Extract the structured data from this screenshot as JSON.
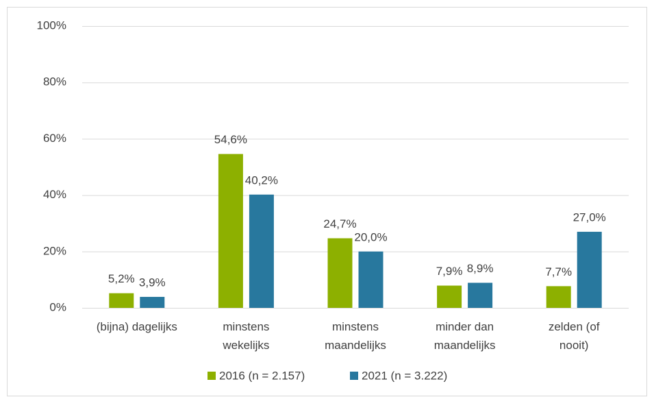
{
  "chart_data": {
    "type": "bar",
    "categories": [
      "(bijna) dagelijks",
      "minstens\nwekelijks",
      "minstens\nmaandelijks",
      "minder dan\nmaandelijks",
      "zelden (of\nnooit)"
    ],
    "series": [
      {
        "name": "2016 (n = 2.157)",
        "color": "#8db000",
        "values": [
          5.2,
          54.6,
          24.7,
          7.9,
          7.7
        ],
        "value_labels": [
          "5,2%",
          "54,6%",
          "24,7%",
          "7,9%",
          "7,7%"
        ]
      },
      {
        "name": "2021 (n = 3.222)",
        "color": "#28789e",
        "values": [
          3.9,
          40.2,
          20.0,
          8.9,
          27.0
        ],
        "value_labels": [
          "3,9%",
          "40,2%",
          "20,0%",
          "8,9%",
          "27,0%"
        ]
      }
    ],
    "ylim": [
      0,
      100
    ],
    "yticks": [
      {
        "value": 0,
        "label": "0%"
      },
      {
        "value": 20,
        "label": "20%"
      },
      {
        "value": 40,
        "label": "40%"
      },
      {
        "value": 60,
        "label": "60%"
      },
      {
        "value": 80,
        "label": "80%"
      },
      {
        "value": 100,
        "label": "100%"
      }
    ],
    "grid": true,
    "legend": "bottom"
  }
}
